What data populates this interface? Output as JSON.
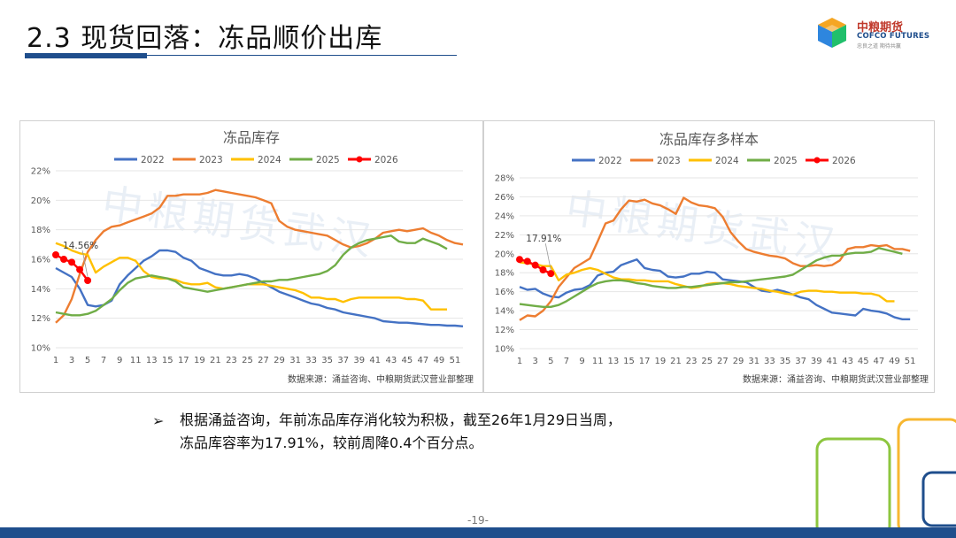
{
  "slide": {
    "title": "2.3 现货回落：冻品顺价出库",
    "page_number": "-19-",
    "colors": {
      "brand_blue": "#1f4e8c"
    }
  },
  "logo": {
    "name_cn": "中粮期货",
    "name_en": "COFCO FUTURES",
    "tagline": "忠良之道 期待共赢",
    "icon": "cube-logo-icon"
  },
  "text": {
    "bullet": "➢",
    "paragraph_line1": "根据涌益咨询，年前冻品库存消化较为积极，截至26年1月29日当周，",
    "paragraph_line2": "冻品库容率为17.91%，较前周降0.4个百分点。"
  },
  "chart_data": [
    {
      "type": "line",
      "title": "冻品库存",
      "source": "数据来源：涌益咨询、中粮期货武汉营业部整理",
      "watermark": "中粮期货武汉",
      "annotation": {
        "label": "14.56%",
        "series": "2026",
        "x": 5,
        "y": 14.56
      },
      "ylim": [
        10,
        22
      ],
      "yticks": [
        10,
        12,
        14,
        16,
        18,
        20,
        22
      ],
      "y_suffix": "%",
      "xlim": [
        1,
        52
      ],
      "xticks": [
        1,
        3,
        5,
        7,
        9,
        11,
        13,
        15,
        17,
        19,
        21,
        23,
        25,
        27,
        29,
        31,
        33,
        35,
        37,
        39,
        41,
        43,
        45,
        47,
        49,
        51
      ],
      "series": [
        {
          "name": "2022",
          "color": "#4472c4",
          "x": [
            1,
            2,
            3,
            4,
            5,
            6,
            7,
            8,
            9,
            10,
            11,
            12,
            13,
            14,
            15,
            16,
            17,
            18,
            19,
            20,
            21,
            22,
            23,
            24,
            25,
            26,
            27,
            28,
            29,
            30,
            31,
            32,
            33,
            34,
            35,
            36,
            37,
            38,
            39,
            40,
            41,
            42,
            43,
            44,
            45,
            46,
            47,
            48,
            49,
            50,
            51,
            52
          ],
          "values": [
            15.4,
            15.1,
            14.8,
            14.0,
            12.9,
            12.8,
            12.9,
            13.2,
            14.3,
            14.9,
            15.4,
            15.9,
            16.2,
            16.6,
            16.6,
            16.5,
            16.1,
            15.9,
            15.4,
            15.2,
            15.0,
            14.9,
            14.9,
            15.0,
            14.9,
            14.7,
            14.4,
            14.1,
            13.8,
            13.6,
            13.4,
            13.2,
            13.0,
            12.9,
            12.7,
            12.6,
            12.4,
            12.3,
            12.2,
            12.1,
            12.0,
            11.8,
            11.75,
            11.7,
            11.7,
            11.65,
            11.6,
            11.55,
            11.55,
            11.5,
            11.5,
            11.45
          ]
        },
        {
          "name": "2023",
          "color": "#ed7d31",
          "x": [
            1,
            2,
            3,
            4,
            5,
            6,
            7,
            8,
            9,
            10,
            11,
            12,
            13,
            14,
            15,
            16,
            17,
            18,
            19,
            20,
            21,
            22,
            23,
            24,
            25,
            26,
            27,
            28,
            29,
            30,
            31,
            32,
            33,
            34,
            35,
            36,
            37,
            38,
            39,
            40,
            41,
            42,
            43,
            44,
            45,
            46,
            47,
            48,
            49,
            50,
            51,
            52
          ],
          "values": [
            11.7,
            12.2,
            13.3,
            15.0,
            16.5,
            17.3,
            17.9,
            18.2,
            18.3,
            18.5,
            18.7,
            18.9,
            19.1,
            19.5,
            20.3,
            20.3,
            20.4,
            20.4,
            20.4,
            20.5,
            20.7,
            20.6,
            20.5,
            20.4,
            20.3,
            20.2,
            20.0,
            19.8,
            18.6,
            18.2,
            18.0,
            17.9,
            17.8,
            17.7,
            17.6,
            17.3,
            17.0,
            16.8,
            16.9,
            17.1,
            17.4,
            17.8,
            17.9,
            18.0,
            17.9,
            18.0,
            18.1,
            17.8,
            17.6,
            17.3,
            17.1,
            17.0
          ]
        },
        {
          "name": "2024",
          "color": "#ffc000",
          "x": [
            1,
            2,
            3,
            4,
            5,
            6,
            7,
            8,
            9,
            10,
            11,
            12,
            13,
            14,
            15,
            16,
            17,
            18,
            19,
            20,
            21,
            22,
            23,
            24,
            25,
            26,
            27,
            28,
            29,
            30,
            31,
            32,
            33,
            34,
            35,
            36,
            37,
            38,
            39,
            40,
            41,
            42,
            43,
            44,
            45,
            46,
            47,
            48,
            49,
            50
          ],
          "values": [
            17.1,
            16.9,
            16.6,
            16.4,
            16.3,
            15.1,
            15.5,
            15.8,
            16.1,
            16.1,
            15.9,
            15.2,
            14.8,
            14.7,
            14.7,
            14.6,
            14.4,
            14.3,
            14.3,
            14.4,
            14.1,
            14.0,
            14.1,
            14.2,
            14.3,
            14.3,
            14.3,
            14.2,
            14.1,
            14.0,
            13.9,
            13.7,
            13.4,
            13.4,
            13.3,
            13.3,
            13.1,
            13.3,
            13.4,
            13.4,
            13.4,
            13.4,
            13.4,
            13.4,
            13.3,
            13.3,
            13.2,
            12.6,
            12.6,
            12.6
          ]
        },
        {
          "name": "2025",
          "color": "#70ad47",
          "x": [
            1,
            2,
            3,
            4,
            5,
            6,
            7,
            8,
            9,
            10,
            11,
            12,
            13,
            14,
            15,
            16,
            17,
            18,
            19,
            20,
            21,
            22,
            23,
            24,
            25,
            26,
            27,
            28,
            29,
            30,
            31,
            32,
            33,
            34,
            35,
            36,
            37,
            38,
            39,
            40,
            41,
            42,
            43,
            44,
            45,
            46,
            47,
            48,
            49,
            50
          ],
          "values": [
            12.4,
            12.3,
            12.2,
            12.2,
            12.3,
            12.5,
            12.9,
            13.3,
            13.9,
            14.4,
            14.7,
            14.8,
            14.9,
            14.8,
            14.7,
            14.5,
            14.1,
            14.0,
            13.9,
            13.8,
            13.9,
            14.0,
            14.1,
            14.2,
            14.3,
            14.4,
            14.5,
            14.5,
            14.6,
            14.6,
            14.7,
            14.8,
            14.9,
            15.0,
            15.2,
            15.6,
            16.3,
            16.8,
            17.1,
            17.3,
            17.4,
            17.5,
            17.6,
            17.2,
            17.1,
            17.1,
            17.4,
            17.2,
            17.0,
            16.7
          ]
        },
        {
          "name": "2026",
          "color": "#ff0000",
          "markers": true,
          "x": [
            1,
            2,
            3,
            4,
            5
          ],
          "values": [
            16.3,
            16.0,
            15.8,
            15.3,
            14.56
          ]
        }
      ]
    },
    {
      "type": "line",
      "title": "冻品库存多样本",
      "source": "数据来源：涌益咨询、中粮期货武汉营业部整理",
      "watermark": "中粮期货武汉",
      "annotation": {
        "label": "17.91%",
        "series": "2026",
        "x": 5,
        "y": 17.91
      },
      "ylim": [
        10,
        28
      ],
      "yticks": [
        10,
        12,
        14,
        16,
        18,
        20,
        22,
        24,
        26,
        28
      ],
      "y_suffix": "%",
      "xlim": [
        1,
        52
      ],
      "xticks": [
        1,
        3,
        5,
        7,
        9,
        11,
        13,
        15,
        17,
        19,
        21,
        23,
        25,
        27,
        29,
        31,
        33,
        35,
        37,
        39,
        41,
        43,
        45,
        47,
        49,
        51
      ],
      "series": [
        {
          "name": "2022",
          "color": "#4472c4",
          "x": [
            1,
            2,
            3,
            4,
            5,
            6,
            7,
            8,
            9,
            10,
            11,
            12,
            13,
            14,
            15,
            16,
            17,
            18,
            19,
            20,
            21,
            22,
            23,
            24,
            25,
            26,
            27,
            28,
            29,
            30,
            31,
            32,
            33,
            34,
            35,
            36,
            37,
            38,
            39,
            40,
            41,
            42,
            43,
            44,
            45,
            46,
            47,
            48,
            49,
            50,
            51
          ],
          "values": [
            16.5,
            16.2,
            16.3,
            15.8,
            15.5,
            15.4,
            15.9,
            16.2,
            16.3,
            16.7,
            17.7,
            18.0,
            18.1,
            18.8,
            19.1,
            19.4,
            18.5,
            18.3,
            18.2,
            17.6,
            17.5,
            17.6,
            17.9,
            17.9,
            18.1,
            18.0,
            17.3,
            17.2,
            17.1,
            17.0,
            16.5,
            16.1,
            16.0,
            16.2,
            16.0,
            15.7,
            15.4,
            15.2,
            14.6,
            14.2,
            13.8,
            13.7,
            13.6,
            13.5,
            14.2,
            14.0,
            13.9,
            13.7,
            13.3,
            13.1,
            13.1
          ]
        },
        {
          "name": "2023",
          "color": "#ed7d31",
          "x": [
            1,
            2,
            3,
            4,
            5,
            6,
            7,
            8,
            9,
            10,
            11,
            12,
            13,
            14,
            15,
            16,
            17,
            18,
            19,
            20,
            21,
            22,
            23,
            24,
            25,
            26,
            27,
            28,
            29,
            30,
            31,
            32,
            33,
            34,
            35,
            36,
            37,
            38,
            39,
            40,
            41,
            42,
            43,
            44,
            45,
            46,
            47,
            48,
            49,
            50,
            51
          ],
          "values": [
            13.0,
            13.5,
            13.4,
            14.0,
            15.0,
            16.5,
            17.5,
            18.5,
            19.0,
            19.5,
            21.3,
            23.2,
            23.5,
            24.7,
            25.6,
            25.5,
            25.7,
            25.3,
            25.1,
            24.7,
            24.2,
            25.9,
            25.4,
            25.1,
            25.0,
            24.8,
            23.9,
            22.3,
            21.3,
            20.5,
            20.2,
            20.0,
            19.8,
            19.7,
            19.5,
            19.0,
            18.7,
            18.7,
            18.8,
            18.7,
            18.8,
            19.3,
            20.5,
            20.7,
            20.7,
            20.9,
            20.8,
            20.9,
            20.5,
            20.5,
            20.3
          ]
        },
        {
          "name": "2024",
          "color": "#ffc000",
          "x": [
            1,
            2,
            3,
            4,
            5,
            6,
            7,
            8,
            9,
            10,
            11,
            12,
            13,
            14,
            15,
            16,
            17,
            18,
            19,
            20,
            21,
            22,
            23,
            24,
            25,
            26,
            27,
            28,
            29,
            30,
            31,
            32,
            33,
            34,
            35,
            36,
            37,
            38,
            39,
            40,
            41,
            42,
            43,
            44,
            45,
            46,
            47,
            48,
            49
          ],
          "values": [
            19.1,
            19.0,
            18.9,
            18.7,
            18.7,
            17.2,
            17.8,
            18.0,
            18.3,
            18.5,
            18.3,
            17.9,
            17.5,
            17.3,
            17.3,
            17.2,
            17.2,
            17.1,
            17.1,
            17.1,
            16.8,
            16.6,
            16.4,
            16.5,
            16.8,
            16.9,
            16.9,
            16.8,
            16.6,
            16.5,
            16.4,
            16.3,
            16.1,
            16.0,
            15.8,
            15.7,
            16.0,
            16.1,
            16.1,
            16.0,
            16.0,
            15.9,
            15.9,
            15.9,
            15.8,
            15.8,
            15.6,
            15.0,
            15.0
          ]
        },
        {
          "name": "2025",
          "color": "#70ad47",
          "x": [
            1,
            2,
            3,
            4,
            5,
            6,
            7,
            8,
            9,
            10,
            11,
            12,
            13,
            14,
            15,
            16,
            17,
            18,
            19,
            20,
            21,
            22,
            23,
            24,
            25,
            26,
            27,
            28,
            29,
            30,
            31,
            32,
            33,
            34,
            35,
            36,
            37,
            38,
            39,
            40,
            41,
            42,
            43,
            44,
            45,
            46,
            47,
            48,
            49,
            50
          ],
          "values": [
            14.7,
            14.6,
            14.5,
            14.4,
            14.4,
            14.6,
            15.0,
            15.5,
            16.0,
            16.5,
            16.9,
            17.1,
            17.2,
            17.2,
            17.1,
            16.9,
            16.8,
            16.6,
            16.5,
            16.4,
            16.4,
            16.5,
            16.5,
            16.6,
            16.7,
            16.8,
            16.9,
            17.0,
            17.0,
            17.1,
            17.2,
            17.3,
            17.4,
            17.5,
            17.6,
            17.8,
            18.3,
            18.8,
            19.3,
            19.6,
            19.8,
            19.8,
            20.0,
            20.1,
            20.1,
            20.2,
            20.6,
            20.4,
            20.2,
            20.0
          ]
        },
        {
          "name": "2026",
          "color": "#ff0000",
          "markers": true,
          "x": [
            1,
            2,
            3,
            4,
            5
          ],
          "values": [
            19.4,
            19.2,
            18.8,
            18.3,
            17.91
          ]
        }
      ]
    }
  ]
}
